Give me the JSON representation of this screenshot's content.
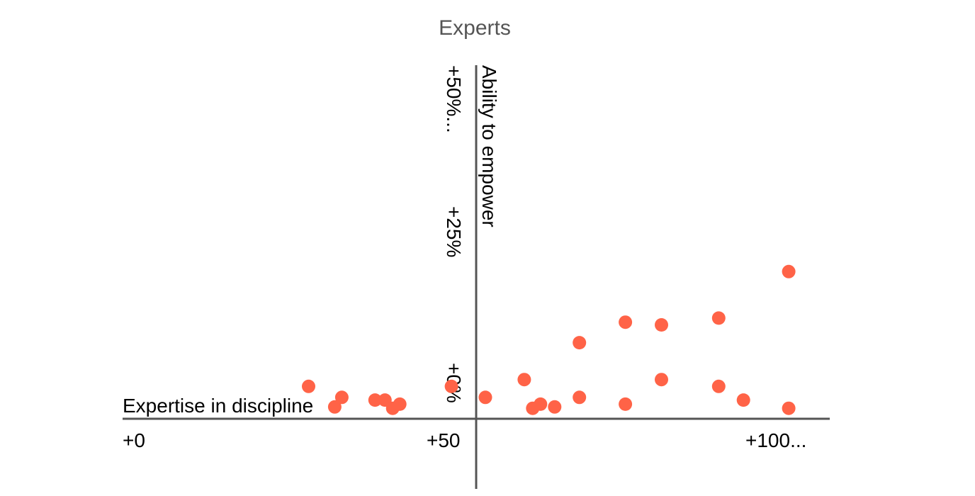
{
  "chart_data": {
    "type": "scatter",
    "title": "Experts",
    "xlabel": "Expertise in discipline",
    "ylabel": "Ability to empower",
    "x_ticks": [
      "+0",
      "+50",
      "+100..."
    ],
    "y_ticks": [
      "+0%",
      "+25%",
      "+50%..."
    ],
    "xlim": [
      0,
      100
    ],
    "ylim": [
      -12,
      50
    ],
    "grid": false,
    "colors": {
      "points": "#ff6347",
      "axis": "#555555"
    },
    "series": [
      {
        "points": [
          [
            26.3,
            3.0
          ],
          [
            30.0,
            0.0
          ],
          [
            31.0,
            1.4
          ],
          [
            35.7,
            1.0
          ],
          [
            37.1,
            1.0
          ],
          [
            38.2,
            -0.2
          ],
          [
            39.2,
            0.4
          ],
          [
            46.5,
            3.0
          ],
          [
            51.3,
            1.4
          ],
          [
            56.8,
            4.0
          ],
          [
            58.0,
            -0.2
          ],
          [
            59.1,
            0.4
          ],
          [
            61.1,
            0.0
          ],
          [
            64.6,
            1.4
          ],
          [
            64.6,
            9.4
          ],
          [
            71.1,
            0.4
          ],
          [
            71.1,
            12.4
          ],
          [
            76.2,
            4.0
          ],
          [
            76.2,
            12.0
          ],
          [
            84.3,
            3.0
          ],
          [
            84.3,
            13.0
          ],
          [
            87.8,
            1.0
          ],
          [
            94.2,
            -0.2
          ],
          [
            94.2,
            19.8
          ]
        ]
      }
    ]
  }
}
